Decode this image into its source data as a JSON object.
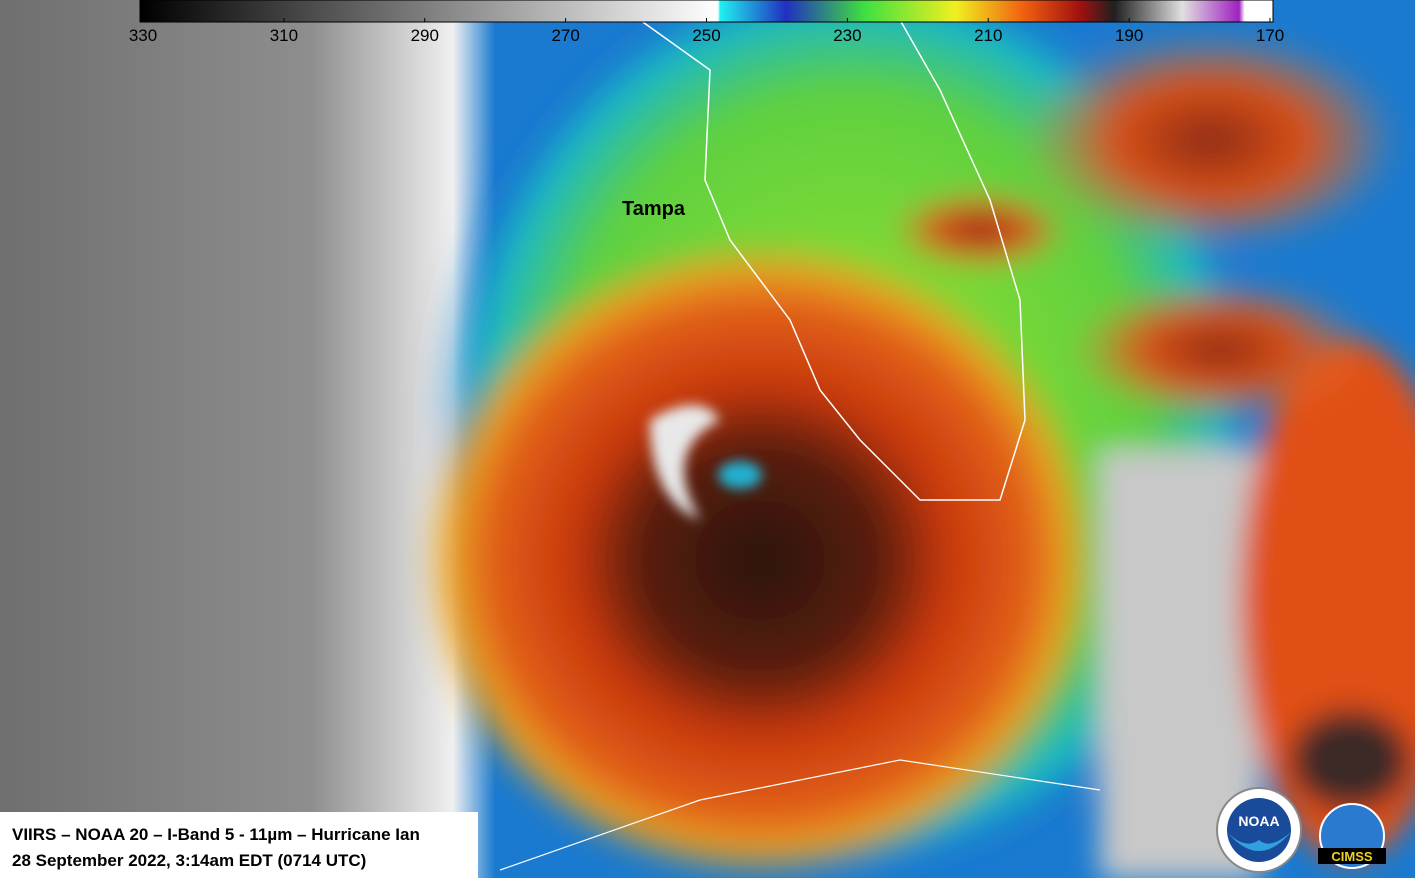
{
  "colorbar": {
    "range": [
      330,
      170
    ],
    "ticks": [
      330,
      310,
      290,
      270,
      250,
      230,
      210,
      190,
      170
    ]
  },
  "labels": {
    "city": "Tampa"
  },
  "caption": {
    "line1": "VIIRS – NOAA 20 – I-Band 5 - 11µm – Hurricane  Ian",
    "line2": "28 September 2022, 3:14am EDT (0714 UTC)"
  },
  "logos": {
    "noaa": "NOAA",
    "cimss": "CIMSS"
  }
}
